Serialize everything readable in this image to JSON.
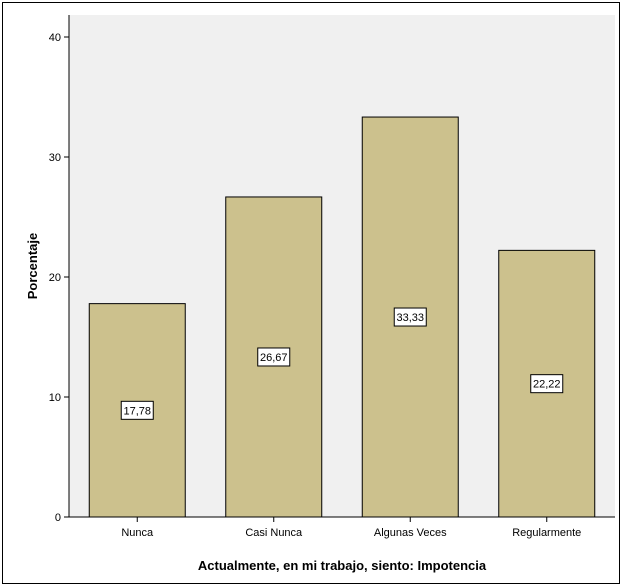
{
  "chart_data": {
    "type": "bar",
    "categories": [
      "Nunca",
      "Casi Nunca",
      "Algunas Veces",
      "Regularmente"
    ],
    "values": [
      17.78,
      26.67,
      33.33,
      22.22
    ],
    "data_labels": [
      "17,78",
      "26,67",
      "33,33",
      "22,22"
    ],
    "xlabel": "Actualmente, en mi trabajo, siento: Impotencia",
    "ylabel": "Porcentaje",
    "ylim": [
      0,
      40
    ],
    "yticks": [
      0,
      10,
      20,
      30,
      40
    ],
    "grid": false,
    "legend": "none",
    "colors": {
      "bar_fill": "#CCC18D",
      "bar_stroke": "#000000",
      "plot_background": "#F0F0F0",
      "label_box": "#FFFFFF"
    }
  }
}
